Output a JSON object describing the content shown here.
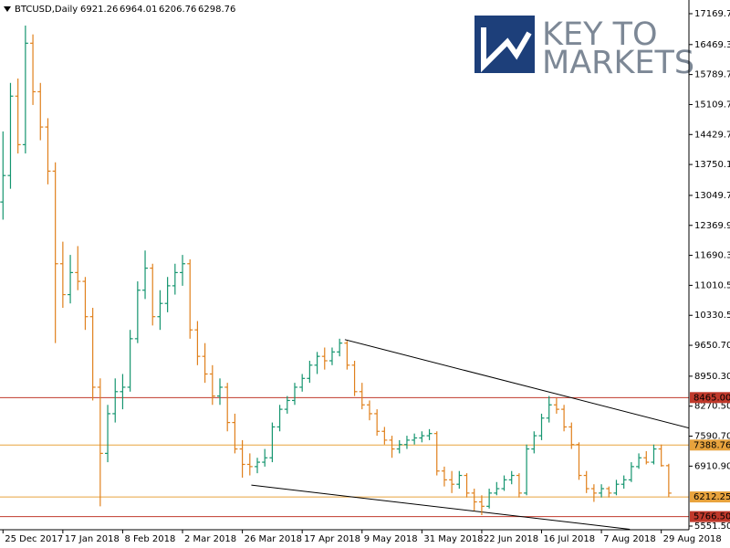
{
  "chart_data": {
    "type": "ohlc",
    "symbol": "BTCUSD,Daily",
    "watermark": [
      "KEY TO",
      "MARKETS"
    ],
    "up_color": "#15956f",
    "down_color": "#e0801c",
    "ylim": [
      5468.7,
      17480
    ],
    "xlim": [
      -0.4,
      91.7
    ],
    "yticks": [
      {
        "value": 17169.7,
        "label": "17169.70"
      },
      {
        "value": 16469.3,
        "label": "16469.30"
      },
      {
        "value": 15789.7,
        "label": "15789.70"
      },
      {
        "value": 15109.7,
        "label": "15109.70"
      },
      {
        "value": 14429.7,
        "label": "14429.70"
      },
      {
        "value": 13750.1,
        "label": "13750.10"
      },
      {
        "value": 13049.7,
        "label": "13049.70"
      },
      {
        "value": 12369.9,
        "label": "12369.90"
      },
      {
        "value": 11690.3,
        "label": "11690.30"
      },
      {
        "value": 11010.5,
        "label": "11010.50"
      },
      {
        "value": 10330.5,
        "label": "10330.50"
      },
      {
        "value": 9650.7,
        "label": "9650.70"
      },
      {
        "value": 8950.3,
        "label": "8950.30"
      },
      {
        "value": 8270.5,
        "label": "8270.50"
      },
      {
        "value": 7590.7,
        "label": "7590.70"
      },
      {
        "value": 6910.9,
        "label": "6910.90"
      },
      {
        "value": 5551.5,
        "label": "5551.50"
      }
    ],
    "xticks": [
      {
        "value": 0,
        "label": "25 Dec 2017"
      },
      {
        "value": 8,
        "label": "17 Jan 2018"
      },
      {
        "value": 16,
        "label": "8 Feb 2018"
      },
      {
        "value": 24,
        "label": "2 Mar 2018"
      },
      {
        "value": 32,
        "label": "26 Mar 2018"
      },
      {
        "value": 40,
        "label": "17 Apr 2018"
      },
      {
        "value": 48,
        "label": "9 May 2018"
      },
      {
        "value": 56,
        "label": "31 May 2018"
      },
      {
        "value": 64,
        "label": "22 Jun 2018"
      },
      {
        "value": 72,
        "label": "16 Jul 2018"
      },
      {
        "value": 80,
        "label": "7 Aug 2018"
      },
      {
        "value": 88,
        "label": "29 Aug 2018"
      }
    ],
    "levels": [
      {
        "value": 8465,
        "label": "8465.00",
        "color": "#c0392b"
      },
      {
        "value": 7388.76,
        "label": "7388.76",
        "color": "#e8a33d"
      },
      {
        "value": 6212.25,
        "label": "6212.25",
        "color": "#e8a33d"
      },
      {
        "value": 5766.5,
        "label": "5766.50",
        "color": "#c0392b"
      }
    ],
    "trendlines": [
      {
        "x": [
          45.7,
          92.3
        ],
        "y": [
          9780,
          7750
        ]
      },
      {
        "x": [
          33.2,
          83.8
        ],
        "y": [
          6480,
          5480
        ]
      }
    ],
    "ohlc": [
      [
        12900,
        14500,
        12500,
        13500
      ],
      [
        13500,
        15600,
        13200,
        15300
      ],
      [
        15300,
        15700,
        14000,
        14200
      ],
      [
        14200,
        16900,
        14000,
        16500
      ],
      [
        16500,
        16700,
        15100,
        15400
      ],
      [
        15400,
        15600,
        14300,
        14600
      ],
      [
        14600,
        14800,
        13300,
        13600
      ],
      [
        13600,
        13800,
        9700,
        11500
      ],
      [
        11500,
        12000,
        10500,
        10800
      ],
      [
        10800,
        11700,
        10600,
        11300
      ],
      [
        11300,
        11900,
        10900,
        11100
      ],
      [
        11100,
        11200,
        10000,
        10300
      ],
      [
        10300,
        10500,
        8400,
        8700
      ],
      [
        8700,
        8900,
        6000,
        7200
      ],
      [
        7200,
        8300,
        7000,
        8100
      ],
      [
        8100,
        8900,
        7900,
        8600
      ],
      [
        8600,
        9000,
        8200,
        8700
      ],
      [
        8700,
        10000,
        8600,
        9800
      ],
      [
        9800,
        11100,
        9700,
        10900
      ],
      [
        10900,
        11800,
        10700,
        11400
      ],
      [
        11400,
        11500,
        10100,
        10300
      ],
      [
        10300,
        10900,
        10000,
        10600
      ],
      [
        10600,
        11200,
        10400,
        11000
      ],
      [
        11000,
        11500,
        10800,
        11300
      ],
      [
        11300,
        11700,
        11000,
        11500
      ],
      [
        11500,
        11600,
        9800,
        10000
      ],
      [
        10000,
        10200,
        9200,
        9400
      ],
      [
        9400,
        9700,
        8800,
        9000
      ],
      [
        9000,
        9200,
        8300,
        8500
      ],
      [
        8500,
        8900,
        8300,
        8700
      ],
      [
        8700,
        8800,
        7700,
        7900
      ],
      [
        7900,
        8100,
        7200,
        7300
      ],
      [
        7300,
        7500,
        6650,
        6950
      ],
      [
        6950,
        7200,
        6700,
        6900
      ],
      [
        6900,
        7100,
        6750,
        7000
      ],
      [
        7000,
        7300,
        6900,
        7100
      ],
      [
        7100,
        7900,
        7000,
        7800
      ],
      [
        7800,
        8300,
        7700,
        8200
      ],
      [
        8200,
        8500,
        8100,
        8400
      ],
      [
        8400,
        8800,
        8300,
        8700
      ],
      [
        8700,
        9000,
        8600,
        8900
      ],
      [
        8900,
        9300,
        8800,
        9200
      ],
      [
        9200,
        9500,
        9000,
        9400
      ],
      [
        9400,
        9600,
        9100,
        9300
      ],
      [
        9300,
        9600,
        9200,
        9500
      ],
      [
        9500,
        9800,
        9400,
        9700
      ],
      [
        9700,
        9750,
        9100,
        9200
      ],
      [
        9200,
        9300,
        8500,
        8600
      ],
      [
        8600,
        8800,
        8200,
        8300
      ],
      [
        8300,
        8400,
        7950,
        8100
      ],
      [
        8100,
        8200,
        7600,
        7700
      ],
      [
        7700,
        7800,
        7400,
        7500
      ],
      [
        7500,
        7600,
        7100,
        7300
      ],
      [
        7300,
        7500,
        7200,
        7400
      ],
      [
        7400,
        7600,
        7300,
        7500
      ],
      [
        7500,
        7650,
        7400,
        7550
      ],
      [
        7550,
        7700,
        7450,
        7600
      ],
      [
        7600,
        7750,
        7500,
        7650
      ],
      [
        7650,
        7700,
        6700,
        6800
      ],
      [
        6800,
        6900,
        6450,
        6600
      ],
      [
        6600,
        6800,
        6300,
        6500
      ],
      [
        6500,
        6800,
        6400,
        6700
      ],
      [
        6700,
        6750,
        6200,
        6300
      ],
      [
        6300,
        6400,
        5900,
        6100
      ],
      [
        6100,
        6250,
        5800,
        6000
      ],
      [
        6000,
        6400,
        5950,
        6300
      ],
      [
        6300,
        6550,
        6250,
        6400
      ],
      [
        6400,
        6700,
        6350,
        6600
      ],
      [
        6600,
        6800,
        6500,
        6700
      ],
      [
        6700,
        6750,
        6200,
        6300
      ],
      [
        6300,
        7400,
        6250,
        7300
      ],
      [
        7300,
        7700,
        7200,
        7600
      ],
      [
        7600,
        8100,
        7500,
        8000
      ],
      [
        8000,
        8500,
        7900,
        8300
      ],
      [
        8300,
        8450,
        8100,
        8200
      ],
      [
        8200,
        8300,
        7700,
        7800
      ],
      [
        7800,
        7900,
        7300,
        7400
      ],
      [
        7400,
        7450,
        6600,
        6700
      ],
      [
        6700,
        6800,
        6300,
        6400
      ],
      [
        6400,
        6500,
        6100,
        6300
      ],
      [
        6300,
        6500,
        6200,
        6400
      ],
      [
        6400,
        6450,
        6200,
        6300
      ],
      [
        6300,
        6600,
        6250,
        6500
      ],
      [
        6500,
        6700,
        6400,
        6600
      ],
      [
        6600,
        7000,
        6550,
        6900
      ],
      [
        6900,
        7200,
        6850,
        7100
      ],
      [
        7100,
        7250,
        6950,
        7000
      ],
      [
        7000,
        7400,
        6950,
        7300
      ],
      [
        7300,
        7400,
        6900,
        6921.26
      ],
      [
        6921.26,
        6964.01,
        6206.76,
        6298.76
      ]
    ]
  }
}
